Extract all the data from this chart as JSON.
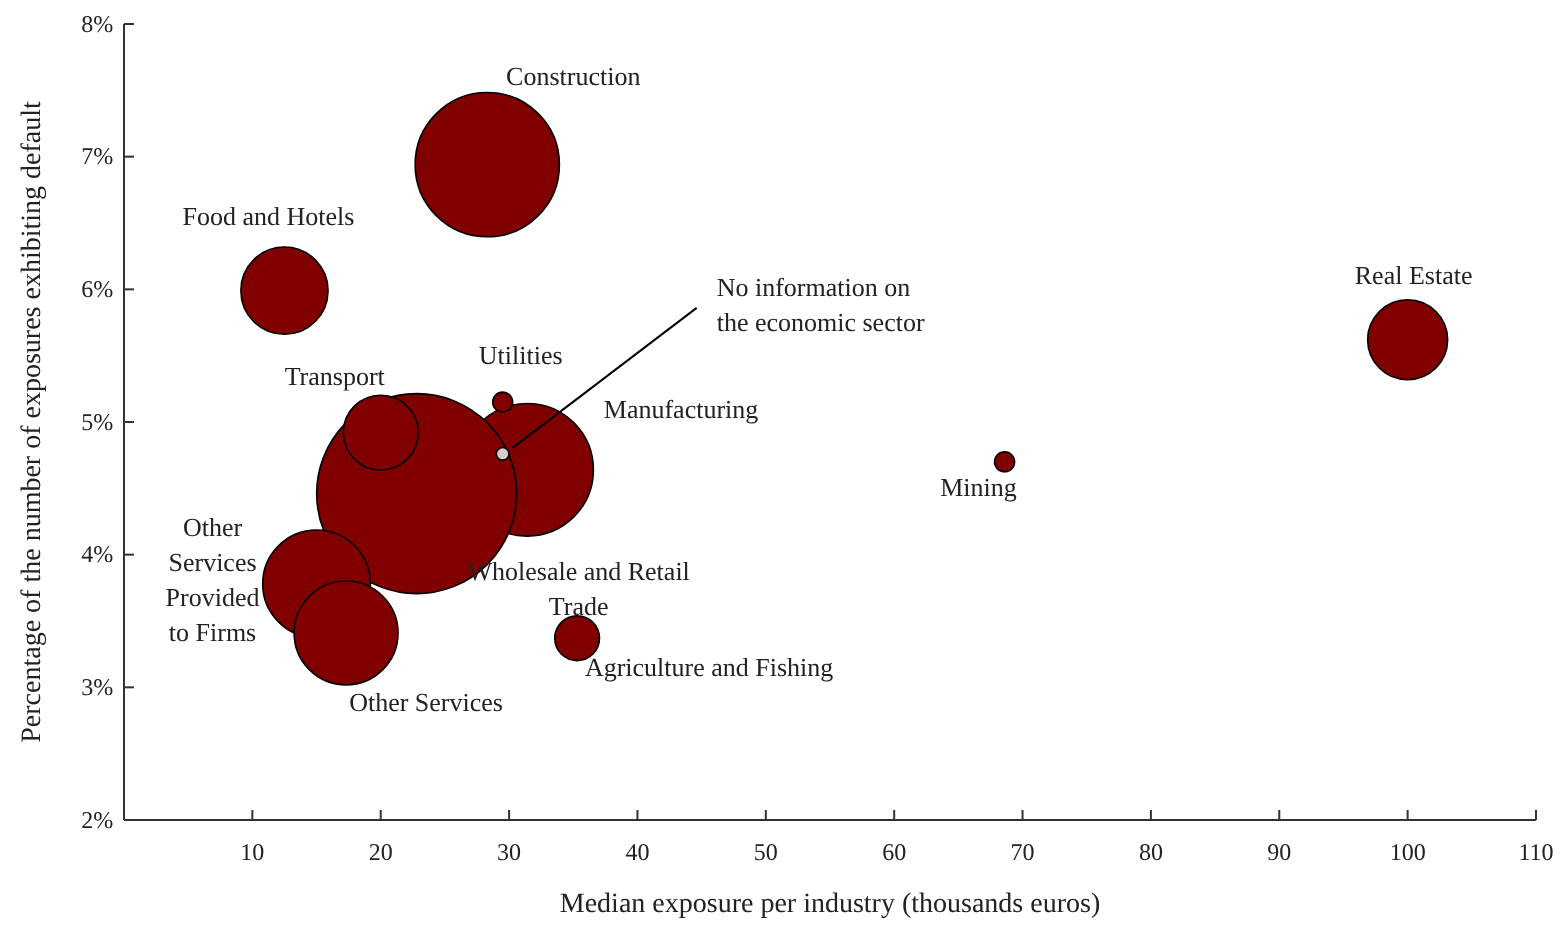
{
  "chart_data": {
    "type": "bubble",
    "xlabel": "Median exposure per industry (thousands euros)",
    "ylabel": "Percentage of the number of exposures exhibiting default",
    "x": [
      28.3,
      12.5,
      100,
      31.4,
      22.8,
      20,
      15,
      17.3,
      29.5,
      29.5,
      68.6,
      35.3
    ],
    "values": [
      6.94,
      5.99,
      5.62,
      4.64,
      4.46,
      4.92,
      3.78,
      3.41,
      5.15,
      4.76,
      4.7,
      3.37
    ],
    "sizes": [
      0.52,
      0.19,
      0.16,
      0.44,
      1,
      0.14,
      0.29,
      0.27,
      0.01,
      0.004,
      0.01,
      0.05
    ],
    "colors": [
      "#800000",
      "#800000",
      "#800000",
      "#800000",
      "#800000",
      "#800000",
      "#800000",
      "#800000",
      "#800000",
      "#d9c9c9",
      "#800000",
      "#800000"
    ],
    "annotations": [
      {
        "text": "Construction",
        "x": 28.3,
        "y": 6.94
      },
      {
        "text": "Food and Hotels",
        "x": 12.5,
        "y": 5.99
      },
      {
        "text": "Real Estate",
        "x": 100,
        "y": 5.62
      },
      "Manufacturing",
      "Wholesale and Retail\nTrade",
      {
        "text": "Transport",
        "x": 20,
        "y": 4.92
      },
      {
        "text": "Other\nServices\nProvided\nto Firms",
        "x": 15,
        "y": 3.78
      },
      {
        "text": "Other Services",
        "x": 17.3,
        "y": 3.41
      },
      {
        "text": "Utilities",
        "x": 29.5,
        "y": 5.15
      },
      {
        "text": "No information on\nthe economic sector",
        "x": 29.5,
        "y": 4.76
      },
      {
        "text": "Mining",
        "x": 68.6,
        "y": 4.7
      },
      {
        "text": "Agriculture and Fishing",
        "x": 35.3,
        "y": 3.37
      }
    ],
    "xlim": [
      0,
      110
    ],
    "xticks": [
      10,
      20,
      30,
      40,
      50,
      60,
      70,
      80,
      90,
      100,
      110
    ],
    "ylim": [
      2,
      8
    ],
    "yticks": [
      {
        "value": 2,
        "label": "2%"
      },
      {
        "value": 3,
        "label": "3%"
      },
      {
        "value": 4,
        "label": "4%"
      },
      {
        "value": 5,
        "label": "5%"
      },
      {
        "value": 6,
        "label": "6%"
      },
      {
        "value": 7,
        "label": "7%"
      },
      {
        "value": 8,
        "label": "8%"
      }
    ],
    "grid": false
  }
}
